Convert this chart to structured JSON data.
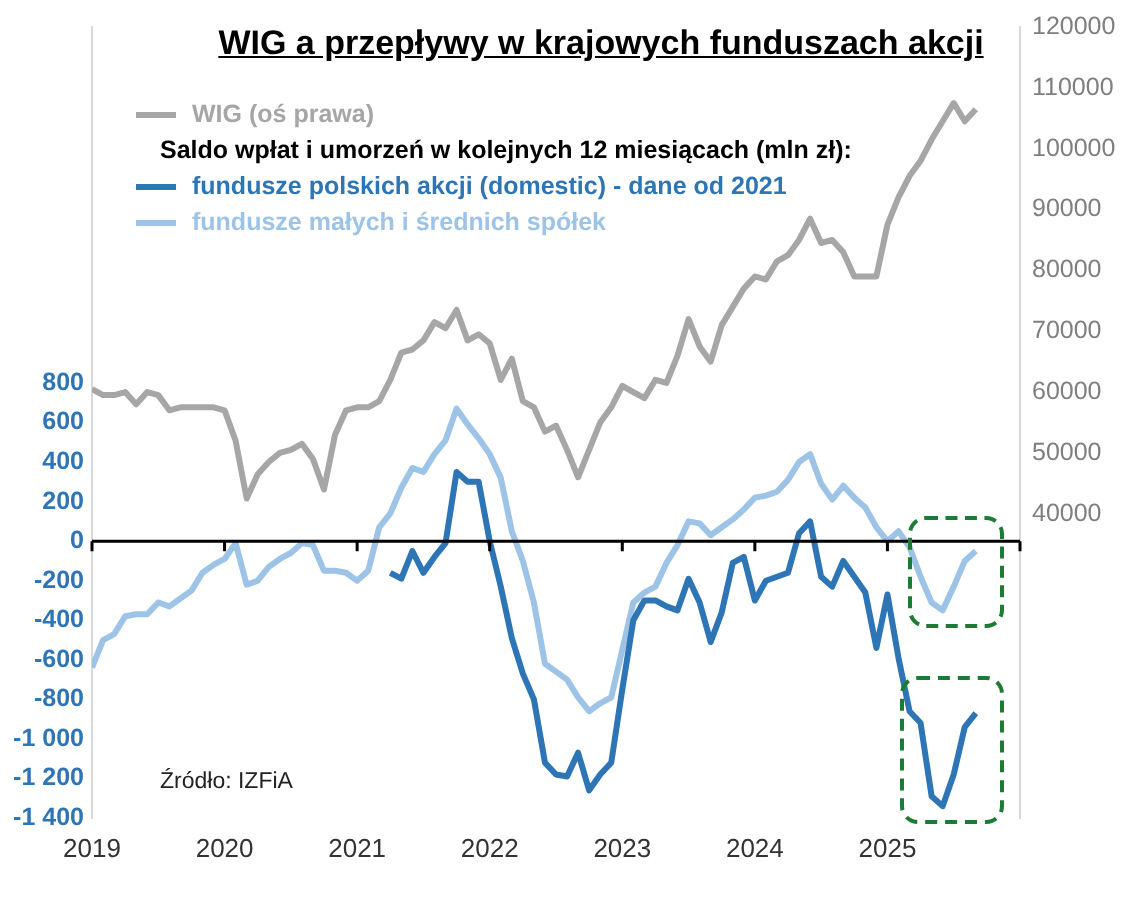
{
  "chart_data": {
    "type": "line",
    "title": "WIG a przepływy w krajowych funduszach akcji",
    "legend_title": "Saldo wpłat i umorzeń w kolejnych 12 miesiącach (mln zł):",
    "legend": "top left",
    "x": [
      "2019-01",
      "2019-02",
      "2019-03",
      "2019-04",
      "2019-05",
      "2019-06",
      "2019-07",
      "2019-08",
      "2019-09",
      "2019-10",
      "2019-11",
      "2019-12",
      "2020-01",
      "2020-02",
      "2020-03",
      "2020-04",
      "2020-05",
      "2020-06",
      "2020-07",
      "2020-08",
      "2020-09",
      "2020-10",
      "2020-11",
      "2020-12",
      "2021-01",
      "2021-02",
      "2021-03",
      "2021-04",
      "2021-05",
      "2021-06",
      "2021-07",
      "2021-08",
      "2021-09",
      "2021-10",
      "2021-11",
      "2021-12",
      "2022-01",
      "2022-02",
      "2022-03",
      "2022-04",
      "2022-05",
      "2022-06",
      "2022-07",
      "2022-08",
      "2022-09",
      "2022-10",
      "2022-11",
      "2022-12",
      "2023-01",
      "2023-02",
      "2023-03",
      "2023-04",
      "2023-05",
      "2023-06",
      "2023-07",
      "2023-08",
      "2023-09",
      "2023-10",
      "2023-11",
      "2023-12",
      "2024-01",
      "2024-02",
      "2024-03",
      "2024-04",
      "2024-05",
      "2024-06",
      "2024-07",
      "2024-08",
      "2024-09",
      "2024-10",
      "2024-11",
      "2024-12",
      "2025-01",
      "2025-02",
      "2025-03",
      "2025-04",
      "2025-05",
      "2025-06",
      "2025-07",
      "2025-08",
      "2025-09"
    ],
    "series": [
      {
        "name": "WIG (oś prawa)",
        "color": "#a6a6a6",
        "axis": "y2",
        "values": [
          60500,
          59500,
          59500,
          60000,
          58000,
          60000,
          59500,
          57000,
          57500,
          57500,
          57500,
          57500,
          57000,
          52000,
          42500,
          46500,
          48500,
          50000,
          50500,
          51500,
          49000,
          44000,
          53000,
          57000,
          57500,
          57500,
          58500,
          62000,
          66500,
          67000,
          68500,
          71500,
          70500,
          73500,
          68500,
          69500,
          68000,
          62000,
          65500,
          58500,
          57500,
          53500,
          54500,
          50500,
          46000,
          50500,
          55000,
          57500,
          61000,
          60000,
          59000,
          62000,
          61500,
          66000,
          72000,
          67500,
          65000,
          71000,
          74000,
          77000,
          79000,
          78500,
          81500,
          82500,
          85000,
          88500,
          84500,
          85000,
          83000,
          79000,
          79000,
          79000,
          87500,
          92000,
          95500,
          98000,
          101500,
          104500,
          107500,
          104500,
          106500
        ]
      },
      {
        "name": "fundusze polskich akcji (domestic) - dane od 2021",
        "color": "#2e75b6",
        "x": [
          "2021-04",
          "2021-05",
          "2021-06",
          "2021-07",
          "2021-08",
          "2021-09",
          "2021-10",
          "2021-11",
          "2021-12",
          "2022-01",
          "2022-02",
          "2022-03",
          "2022-04",
          "2022-05",
          "2022-06",
          "2022-07",
          "2022-08",
          "2022-09",
          "2022-10",
          "2022-11",
          "2022-12",
          "2023-01",
          "2023-02",
          "2023-03",
          "2023-04",
          "2023-05",
          "2023-06",
          "2023-07",
          "2023-08",
          "2023-09",
          "2023-10",
          "2023-11",
          "2023-12",
          "2024-01",
          "2024-02",
          "2024-03",
          "2024-04",
          "2024-05",
          "2024-06",
          "2024-07",
          "2024-08",
          "2024-09",
          "2024-10",
          "2024-11",
          "2024-12",
          "2025-01",
          "2025-02",
          "2025-03",
          "2025-04",
          "2025-05",
          "2025-06",
          "2025-07",
          "2025-08",
          "2025-09"
        ],
        "values": [
          -160,
          -190,
          -50,
          -160,
          -80,
          -10,
          350,
          300,
          300,
          0,
          -230,
          -490,
          -670,
          -800,
          -1120,
          -1180,
          -1190,
          -1070,
          -1260,
          -1180,
          -1120,
          -750,
          -400,
          -300,
          -300,
          -330,
          -350,
          -190,
          -310,
          -510,
          -360,
          -110,
          -80,
          -300,
          -200,
          -180,
          -160,
          40,
          100,
          -180,
          -230,
          -100,
          -180,
          -260,
          -540,
          -270,
          -590,
          -860,
          -920,
          -1290,
          -1340,
          -1180,
          -940,
          -870
        ]
      },
      {
        "name": "fundusze małych i średnich spółek",
        "color": "#9dc3e6",
        "values": [
          -640,
          -500,
          -470,
          -380,
          -370,
          -370,
          -310,
          -330,
          -290,
          -250,
          -160,
          -120,
          -90,
          -10,
          -220,
          -200,
          -130,
          -90,
          -60,
          -10,
          -20,
          -150,
          -150,
          -160,
          -200,
          -150,
          70,
          140,
          270,
          370,
          350,
          440,
          510,
          670,
          590,
          520,
          440,
          320,
          50,
          -100,
          -310,
          -620,
          -660,
          -700,
          -790,
          -860,
          -820,
          -790,
          -550,
          -310,
          -260,
          -230,
          -110,
          -20,
          100,
          90,
          30,
          70,
          110,
          160,
          220,
          230,
          250,
          310,
          400,
          440,
          290,
          210,
          280,
          220,
          170,
          70,
          0,
          50,
          -30,
          -180,
          -310,
          -350,
          -230,
          -100,
          -50
        ]
      }
    ],
    "xlim": [
      "2019",
      "2026"
    ],
    "xticks": [
      "2019",
      "2020",
      "2021",
      "2022",
      "2023",
      "2024",
      "2025",
      {
        "value": "2026",
        "label": null
      }
    ],
    "ylim": [
      -1400,
      2600
    ],
    "yticks": [
      {
        "value": -1400,
        "label": "-1 400"
      },
      {
        "value": -1200,
        "label": "-1 200"
      },
      {
        "value": -1000,
        "label": "-1 000"
      },
      -800,
      -600,
      -400,
      -200,
      0,
      200,
      400,
      600,
      800
    ],
    "y2lim": [
      -10000,
      120000
    ],
    "y2ticks": [
      40000,
      50000,
      60000,
      70000,
      80000,
      90000,
      100000,
      110000,
      120000
    ],
    "ref_lines": [
      {
        "axis": "y",
        "value": 0,
        "color": "#000000"
      }
    ],
    "annotations": [
      "Źródło: IZFiA"
    ]
  }
}
